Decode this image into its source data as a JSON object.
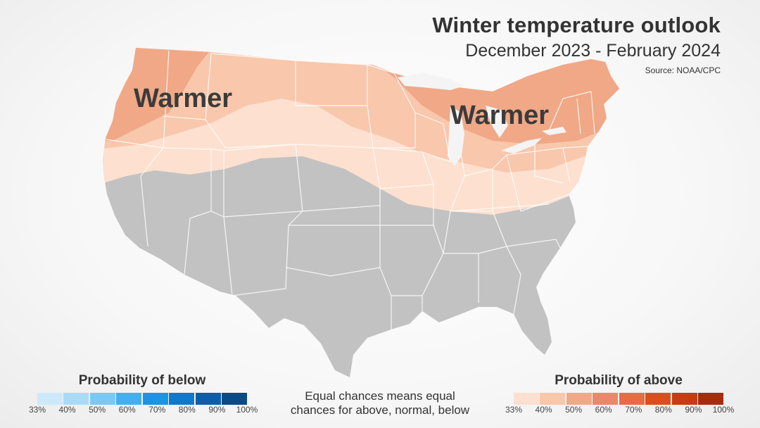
{
  "header": {
    "title": "Winter temperature outlook",
    "subtitle": "December 2023 - February 2024",
    "source": "Source: NOAA/CPC"
  },
  "map": {
    "label_west": "Warmer",
    "label_east": "Warmer",
    "colors": {
      "equal_chances": "#c2c2c2",
      "above_33": "#fde0cf",
      "above_40": "#f8c7ac",
      "above_50": "#f0a887",
      "state_border": "#ffffff"
    }
  },
  "legend_below": {
    "title": "Probability of below",
    "colors": [
      "#cbe9fb",
      "#a9dbf8",
      "#7cc8f4",
      "#47aeee",
      "#1e93e0",
      "#1478c6",
      "#0f5ea5",
      "#0b4a82"
    ],
    "ticks": [
      "33%",
      "40%",
      "50%",
      "60%",
      "70%",
      "80%",
      "90%",
      "100%"
    ]
  },
  "legend_above": {
    "title": "Probability of above",
    "colors": [
      "#fde0cf",
      "#f8c7ac",
      "#f0a887",
      "#e8896a",
      "#e86b45",
      "#db4e22",
      "#c93b14",
      "#a32d0d"
    ],
    "ticks": [
      "33%",
      "40%",
      "50%",
      "60%",
      "70%",
      "80%",
      "90%",
      "100%"
    ]
  },
  "note": {
    "line1": "Equal chances means equal",
    "line2": "chances for above, normal, below"
  }
}
